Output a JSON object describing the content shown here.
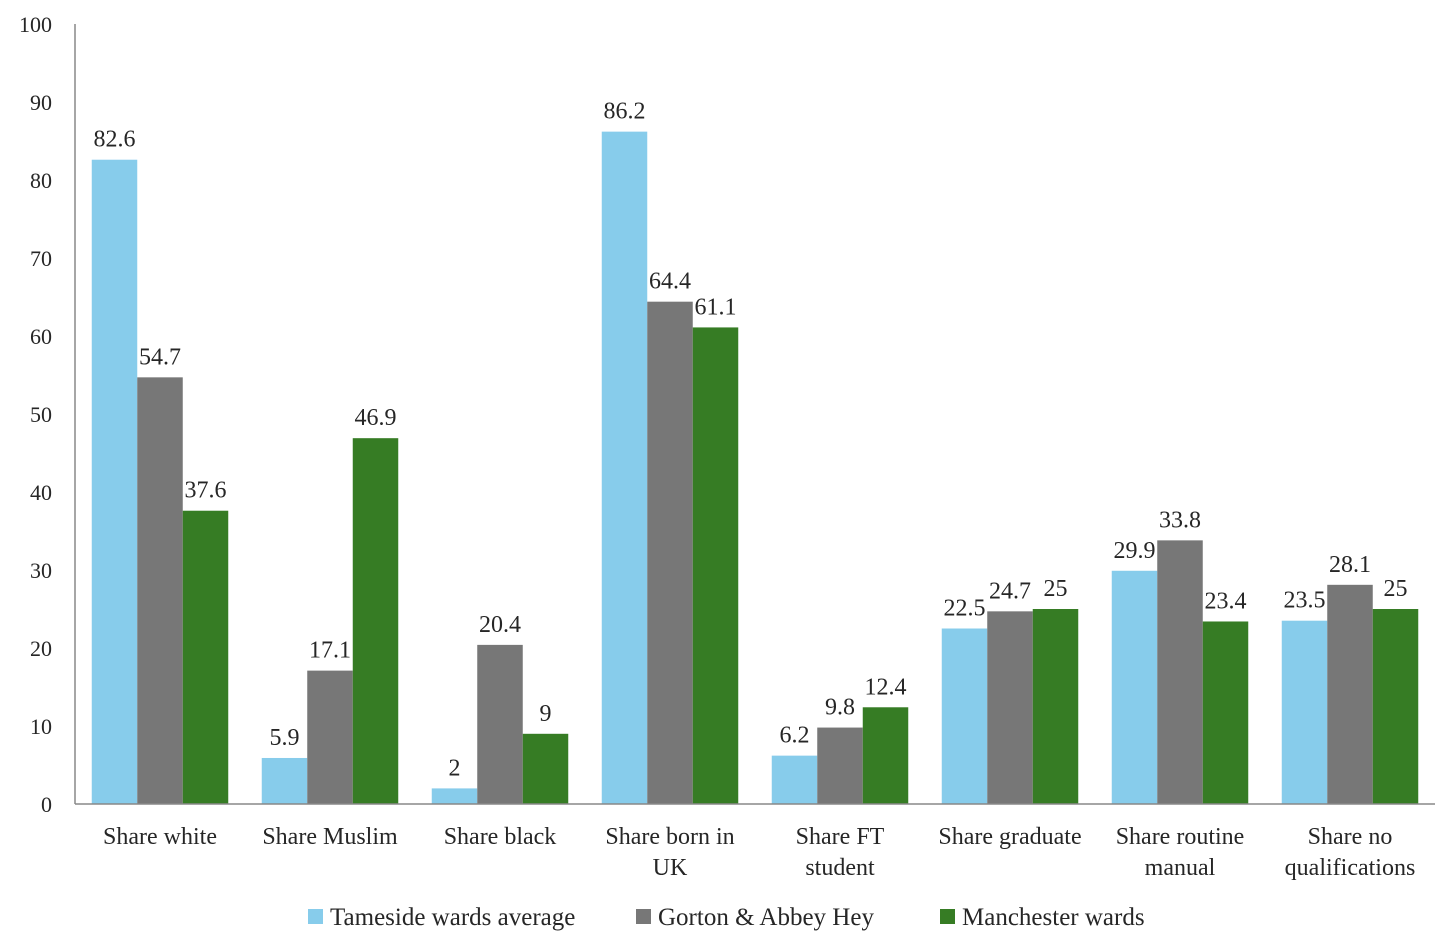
{
  "chart_data": {
    "type": "bar",
    "categories": [
      [
        "Share white"
      ],
      [
        "Share Muslim"
      ],
      [
        "Share black"
      ],
      [
        "Share born in",
        "UK"
      ],
      [
        "Share FT",
        "student"
      ],
      [
        "Share graduate"
      ],
      [
        "Share routine",
        "manual"
      ],
      [
        "Share no",
        "qualifications"
      ]
    ],
    "series": [
      {
        "name": "Tameside wards average",
        "color": "#87CCEB",
        "values": [
          82.6,
          5.9,
          2,
          86.2,
          6.2,
          22.5,
          29.9,
          23.5
        ],
        "labels": [
          "82.6",
          "5.9",
          "2",
          "86.2",
          "6.2",
          "22.5",
          "29.9",
          "23.5"
        ]
      },
      {
        "name": "Gorton & Abbey Hey",
        "color": "#777777",
        "values": [
          54.7,
          17.1,
          20.4,
          64.4,
          9.8,
          24.7,
          33.8,
          28.1
        ],
        "labels": [
          "54.7",
          "17.1",
          "20.4",
          "64.4",
          "9.8",
          "24.7",
          "33.8",
          "28.1"
        ]
      },
      {
        "name": "Manchester wards",
        "color": "#367C24",
        "values": [
          37.6,
          46.9,
          9,
          61.1,
          12.4,
          25,
          23.4,
          25
        ],
        "labels": [
          "37.6",
          "46.9",
          "9",
          "61.1",
          "12.4",
          "25",
          "23.4",
          "25"
        ]
      }
    ],
    "yticks": [
      "0",
      "10",
      "20",
      "30",
      "40",
      "50",
      "60",
      "70",
      "80",
      "90",
      "100"
    ],
    "ylim": [
      0,
      100
    ],
    "grid": false,
    "legend": "bottom-center",
    "title": "",
    "xlabel": "",
    "ylabel": ""
  }
}
